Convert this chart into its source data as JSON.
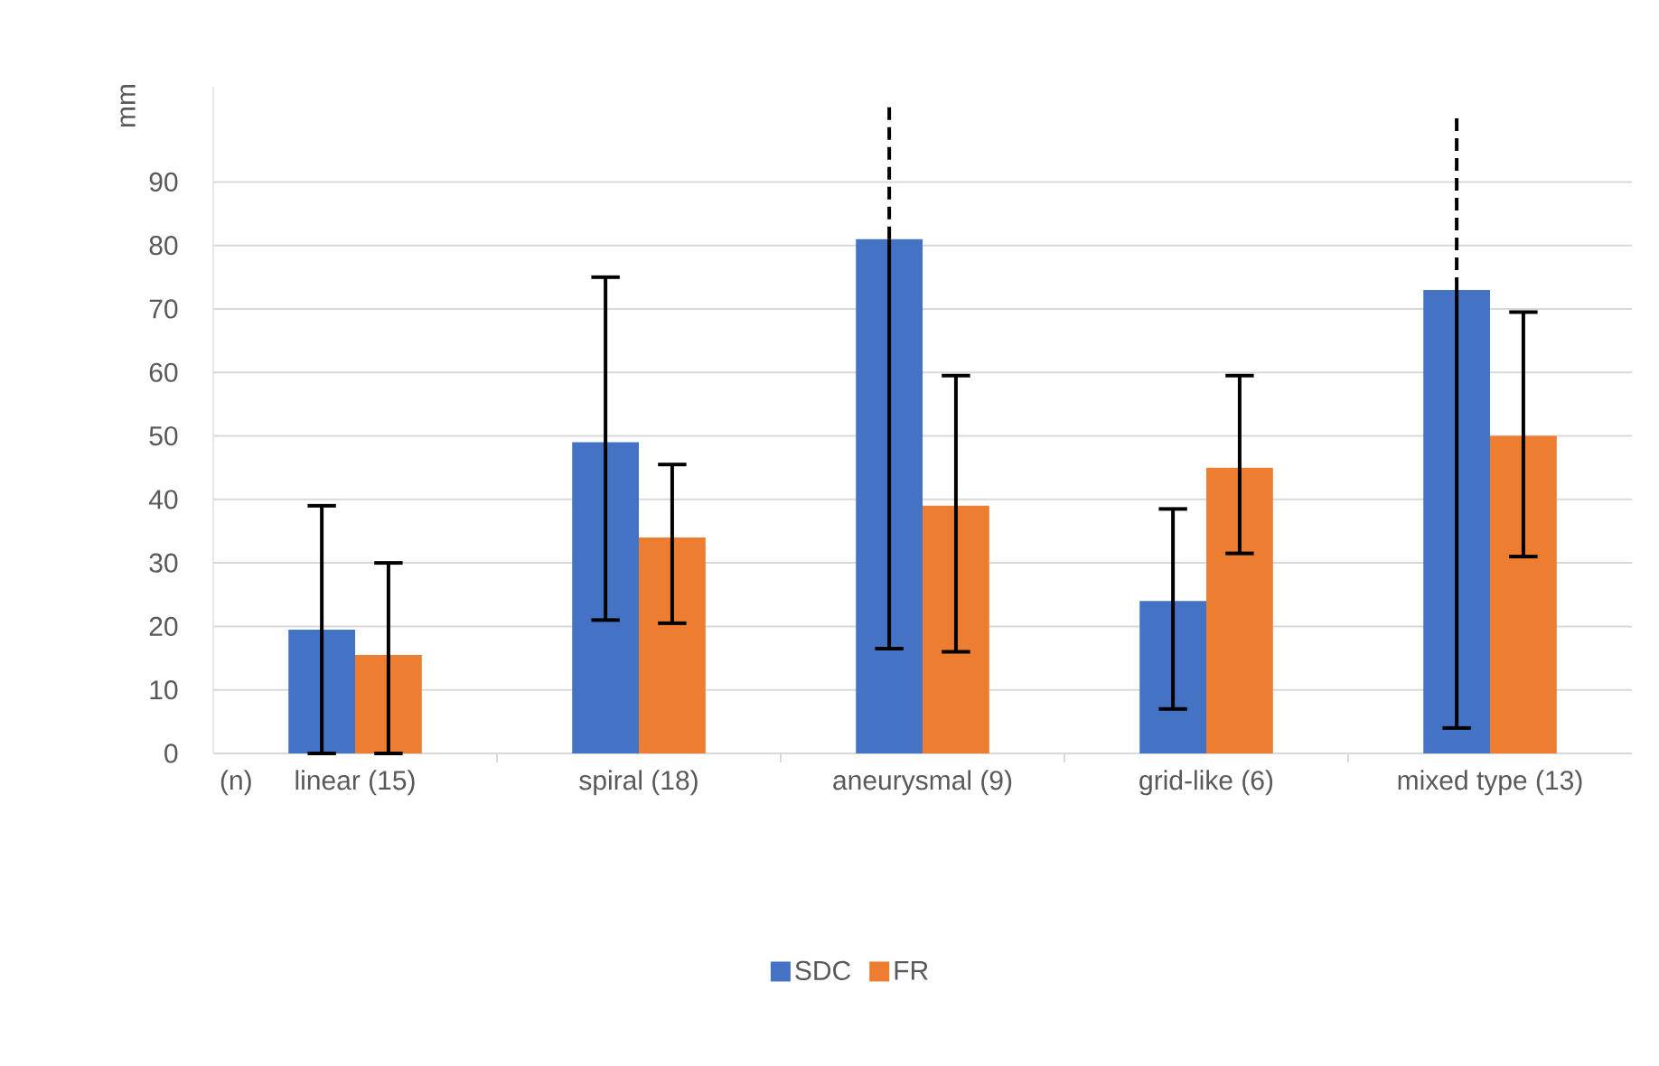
{
  "chart_data": {
    "type": "bar",
    "ylabel": "mm",
    "categories": [
      "linear (15)",
      "spiral (18)",
      "aneurysmal (9)",
      "grid-like (6)",
      "mixed type (13)"
    ],
    "series": [
      {
        "name": "SDC",
        "color": "#4472c4",
        "values": [
          19.5,
          49,
          81,
          24,
          73
        ],
        "errors": [
          [
            0,
            39
          ],
          [
            21,
            75
          ],
          [
            16.5,
            102
          ],
          [
            7,
            38.5
          ],
          [
            4,
            100
          ]
        ]
      },
      {
        "name": "FR",
        "color": "#ed7d31",
        "values": [
          15.5,
          34,
          39,
          45,
          50
        ],
        "errors": [
          [
            0,
            30
          ],
          [
            20.5,
            45.5
          ],
          [
            16,
            59.5
          ],
          [
            31.5,
            59.5
          ],
          [
            31,
            69.5
          ]
        ]
      }
    ],
    "ylim": [
      0,
      105
    ],
    "yticks": [
      0,
      10,
      20,
      30,
      40,
      50,
      60,
      70,
      80,
      90
    ],
    "grid": "y",
    "legend": "bottom",
    "annotations": [
      "(n)"
    ]
  }
}
